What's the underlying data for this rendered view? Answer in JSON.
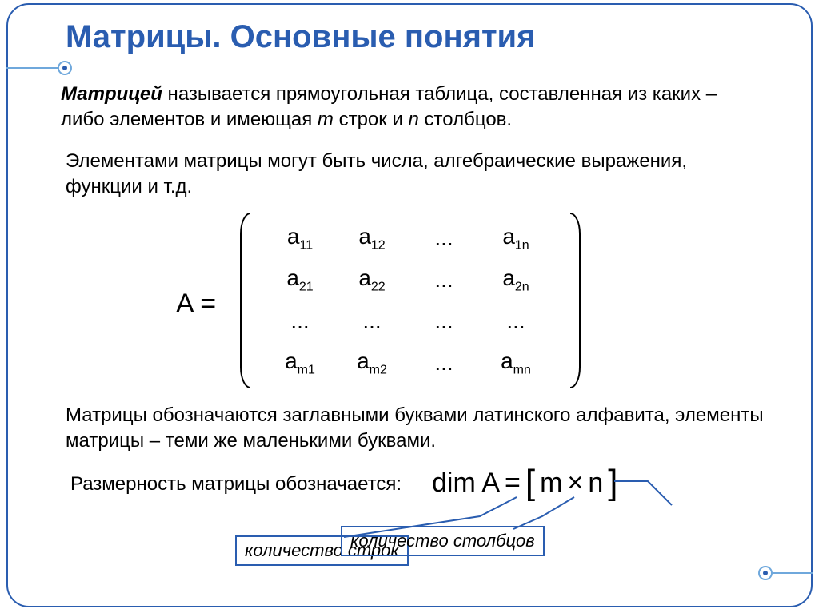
{
  "colors": {
    "accent": "#2a5db0",
    "accent_light": "#6fa8dc",
    "text": "#000000",
    "background": "#ffffff"
  },
  "title": "Матрицы. Основные понятия",
  "definition": {
    "lead": "Матрицей",
    "rest_before_m": " называется прямоугольная таблица, составленная из каких – либо элементов и имеющая ",
    "m": "m",
    "mid": " строк и ",
    "n": "n",
    "tail": " столбцов."
  },
  "elements_note": "Элементами матрицы могут быть числа, алгебраические выражения, функции и т.д.",
  "matrix": {
    "lhs": "A =",
    "cells": [
      [
        "a<sub>11</sub>",
        "a<sub>12</sub>",
        "...",
        "a<sub>1n</sub>"
      ],
      [
        "a<sub>21</sub>",
        "a<sub>22</sub>",
        "...",
        "a<sub>2n</sub>"
      ],
      [
        "...",
        "...",
        "...",
        "..."
      ],
      [
        "a<sub>m1</sub>",
        "a<sub>m2</sub>",
        "...",
        "a<sub>mn</sub>"
      ]
    ]
  },
  "notation_note": "Матрицы обозначаются заглавными буквами латинского алфавита, элементы матрицы – теми же маленькими буквами.",
  "dimension_label": "Размерность матрицы обозначается:",
  "dim_formula": {
    "lhs": "dim A",
    "eq": "=",
    "open": "[",
    "m": "m",
    "times": "×",
    "n": "n",
    "close": "]"
  },
  "annotations": {
    "rows": "количество строк",
    "cols": "количество столбцов"
  }
}
